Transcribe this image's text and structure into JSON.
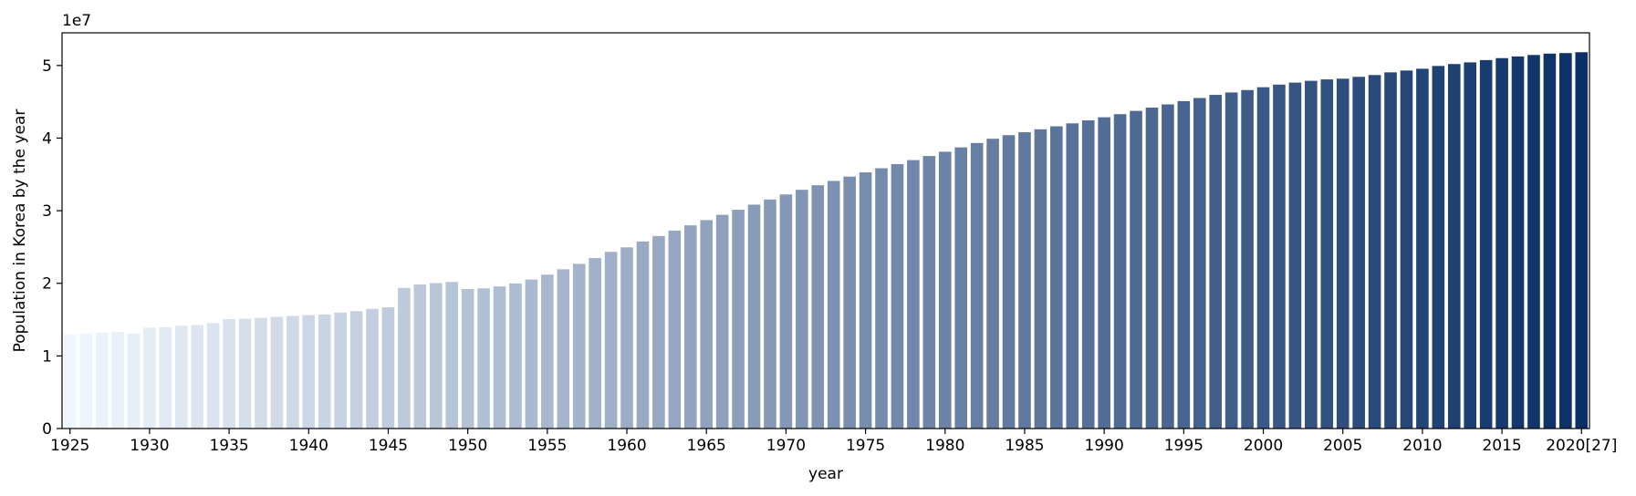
{
  "chart_data": {
    "type": "bar",
    "xlabel": "year",
    "ylabel": "Population in Korea by the year",
    "y_offset_label": "1e7",
    "y_scale_factor": 10000000,
    "ylim": [
      0,
      54500000
    ],
    "y_ticks": [
      0,
      10000000,
      20000000,
      30000000,
      40000000,
      50000000
    ],
    "y_tick_labels": [
      "0",
      "1",
      "2",
      "3",
      "4",
      "5"
    ],
    "x_tick_categories": [
      "1925",
      "1930",
      "1935",
      "1940",
      "1945",
      "1950",
      "1955",
      "1960",
      "1965",
      "1970",
      "1975",
      "1980",
      "1985",
      "1990",
      "1995",
      "2000",
      "2005",
      "2010",
      "2015",
      "2020[27]"
    ],
    "color_map": {
      "start": "#f0f6fd",
      "end": "#0b2f66"
    },
    "grid": false,
    "legend": "none",
    "categories": [
      "1925",
      "1926",
      "1927",
      "1928",
      "1929",
      "1930",
      "1931",
      "1932",
      "1933",
      "1934",
      "1935",
      "1936",
      "1937",
      "1938",
      "1939",
      "1940",
      "1941",
      "1942",
      "1943",
      "1944",
      "1945",
      "1946",
      "1947",
      "1948",
      "1949",
      "1950",
      "1951",
      "1952",
      "1953",
      "1954",
      "1955",
      "1956",
      "1957",
      "1958",
      "1959",
      "1960",
      "1961",
      "1962",
      "1963",
      "1964",
      "1965",
      "1966",
      "1967",
      "1968",
      "1969",
      "1970",
      "1971",
      "1972",
      "1973",
      "1974",
      "1975",
      "1976",
      "1977",
      "1978",
      "1979",
      "1980",
      "1981",
      "1982",
      "1983",
      "1984",
      "1985",
      "1986",
      "1987",
      "1988",
      "1989",
      "1990",
      "1991",
      "1992",
      "1993",
      "1994",
      "1995",
      "1996",
      "1997",
      "1998",
      "1999",
      "2000",
      "2001",
      "2002",
      "2003",
      "2004",
      "2005",
      "2006",
      "2007",
      "2008",
      "2009",
      "2010",
      "2011",
      "2012",
      "2013",
      "2014",
      "2015",
      "2016",
      "2017",
      "2018",
      "2019",
      "2020[27]"
    ],
    "values": [
      12997611,
      13105131,
      13192158,
      13300000,
      13054000,
      13897592,
      13958000,
      14170000,
      14267000,
      14516000,
      15061960,
      15129000,
      15250000,
      15379000,
      15505000,
      15627000,
      15711000,
      15965000,
      16167000,
      16470000,
      16695000,
      19369270,
      19836234,
      20027393,
      20188641,
      19211386,
      19304737,
      19566860,
      19979069,
      20520601,
      21199760,
      21929718,
      22681233,
      23475000,
      24330000,
      24954290,
      25762000,
      26513000,
      27262000,
      27984000,
      28704674,
      29435571,
      30130983,
      30838302,
      31544266,
      32240827,
      32882704,
      33505406,
      34103149,
      34692266,
      35280725,
      35848523,
      36411795,
      36969185,
      37534236,
      38123775,
      38723248,
      39326352,
      39910403,
      40405956,
      40805744,
      41213674,
      41621690,
      42031247,
      42449038,
      42869283,
      43295704,
      43747962,
      44194628,
      44641540,
      45092991,
      45524681,
      45953580,
      46286503,
      46616677,
      47008111,
      47370164,
      47644736,
      47892330,
      48082519,
      48184561,
      48438292,
      48683638,
      49054708,
      49307835,
      49554112,
      49936638,
      50199853,
      50428893,
      50746659,
      51014947,
      51245707,
      51446201,
      51635256,
      51709098,
      51829136
    ]
  }
}
